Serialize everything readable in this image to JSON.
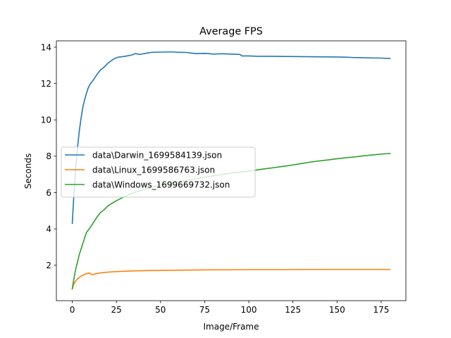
{
  "chart_data": {
    "type": "line",
    "title": "Average FPS",
    "xlabel": "Image/Frame",
    "ylabel": "Seconds",
    "xlim": [
      -9,
      189
    ],
    "ylim": [
      0.05,
      14.35
    ],
    "xticks": [
      0,
      25,
      50,
      75,
      100,
      125,
      150,
      175
    ],
    "yticks": [
      2,
      4,
      6,
      8,
      10,
      12,
      14
    ],
    "grid": false,
    "legend_position": "center-left",
    "series": [
      {
        "name": "data\\Darwin_1699584139.json",
        "color": "#1f77b4",
        "points": [
          [
            0,
            4.3
          ],
          [
            1,
            6.0
          ],
          [
            2,
            7.4
          ],
          [
            3,
            8.5
          ],
          [
            4,
            9.4
          ],
          [
            5,
            10.1
          ],
          [
            6,
            10.7
          ],
          [
            7,
            11.1
          ],
          [
            8,
            11.45
          ],
          [
            9,
            11.75
          ],
          [
            10,
            11.95
          ],
          [
            12,
            12.2
          ],
          [
            14,
            12.5
          ],
          [
            16,
            12.75
          ],
          [
            18,
            12.9
          ],
          [
            20,
            13.1
          ],
          [
            22,
            13.25
          ],
          [
            24,
            13.38
          ],
          [
            26,
            13.45
          ],
          [
            30,
            13.5
          ],
          [
            34,
            13.58
          ],
          [
            36,
            13.65
          ],
          [
            38,
            13.6
          ],
          [
            42,
            13.67
          ],
          [
            45,
            13.72
          ],
          [
            50,
            13.73
          ],
          [
            55,
            13.74
          ],
          [
            57,
            13.74
          ],
          [
            60,
            13.72
          ],
          [
            65,
            13.71
          ],
          [
            67,
            13.68
          ],
          [
            70,
            13.65
          ],
          [
            75,
            13.66
          ],
          [
            77,
            13.65
          ],
          [
            80,
            13.62
          ],
          [
            85,
            13.64
          ],
          [
            90,
            13.62
          ],
          [
            95,
            13.6
          ],
          [
            96,
            13.52
          ],
          [
            100,
            13.52
          ],
          [
            105,
            13.5
          ],
          [
            110,
            13.5
          ],
          [
            120,
            13.49
          ],
          [
            130,
            13.48
          ],
          [
            140,
            13.47
          ],
          [
            150,
            13.46
          ],
          [
            155,
            13.45
          ],
          [
            160,
            13.43
          ],
          [
            170,
            13.41
          ],
          [
            175,
            13.4
          ],
          [
            180,
            13.38
          ]
        ]
      },
      {
        "name": "data\\Linux_1699586763.json",
        "color": "#ff7f0e",
        "points": [
          [
            0,
            0.7
          ],
          [
            1,
            1.0
          ],
          [
            2,
            1.15
          ],
          [
            3,
            1.25
          ],
          [
            4,
            1.33
          ],
          [
            5,
            1.4
          ],
          [
            6,
            1.45
          ],
          [
            7,
            1.5
          ],
          [
            8,
            1.53
          ],
          [
            9,
            1.56
          ],
          [
            10,
            1.57
          ],
          [
            11,
            1.48
          ],
          [
            12,
            1.5
          ],
          [
            14,
            1.54
          ],
          [
            16,
            1.58
          ],
          [
            20,
            1.62
          ],
          [
            25,
            1.65
          ],
          [
            30,
            1.67
          ],
          [
            35,
            1.69
          ],
          [
            40,
            1.7
          ],
          [
            50,
            1.72
          ],
          [
            60,
            1.73
          ],
          [
            70,
            1.74
          ],
          [
            80,
            1.75
          ],
          [
            90,
            1.75
          ],
          [
            100,
            1.76
          ],
          [
            120,
            1.76
          ],
          [
            140,
            1.77
          ],
          [
            160,
            1.77
          ],
          [
            180,
            1.77
          ]
        ]
      },
      {
        "name": "data\\Windows_1699669732.json",
        "color": "#2ca02c",
        "points": [
          [
            0,
            0.7
          ],
          [
            1,
            1.3
          ],
          [
            2,
            1.8
          ],
          [
            3,
            2.2
          ],
          [
            4,
            2.6
          ],
          [
            5,
            2.9
          ],
          [
            6,
            3.2
          ],
          [
            7,
            3.5
          ],
          [
            8,
            3.8
          ],
          [
            10,
            4.05
          ],
          [
            12,
            4.35
          ],
          [
            14,
            4.65
          ],
          [
            16,
            4.9
          ],
          [
            18,
            5.05
          ],
          [
            20,
            5.25
          ],
          [
            22,
            5.38
          ],
          [
            25,
            5.55
          ],
          [
            28,
            5.7
          ],
          [
            30,
            5.8
          ],
          [
            35,
            6.0
          ],
          [
            40,
            6.15
          ],
          [
            45,
            6.28
          ],
          [
            50,
            6.42
          ],
          [
            55,
            6.5
          ],
          [
            60,
            6.6
          ],
          [
            65,
            6.67
          ],
          [
            70,
            6.75
          ],
          [
            75,
            6.85
          ],
          [
            80,
            6.92
          ],
          [
            85,
            7.0
          ],
          [
            90,
            7.07
          ],
          [
            95,
            7.12
          ],
          [
            100,
            7.18
          ],
          [
            105,
            7.25
          ],
          [
            110,
            7.32
          ],
          [
            115,
            7.38
          ],
          [
            120,
            7.45
          ],
          [
            125,
            7.52
          ],
          [
            130,
            7.6
          ],
          [
            135,
            7.68
          ],
          [
            140,
            7.74
          ],
          [
            145,
            7.8
          ],
          [
            150,
            7.86
          ],
          [
            155,
            7.92
          ],
          [
            160,
            7.96
          ],
          [
            165,
            8.02
          ],
          [
            170,
            8.07
          ],
          [
            175,
            8.12
          ],
          [
            180,
            8.15
          ]
        ]
      }
    ]
  }
}
